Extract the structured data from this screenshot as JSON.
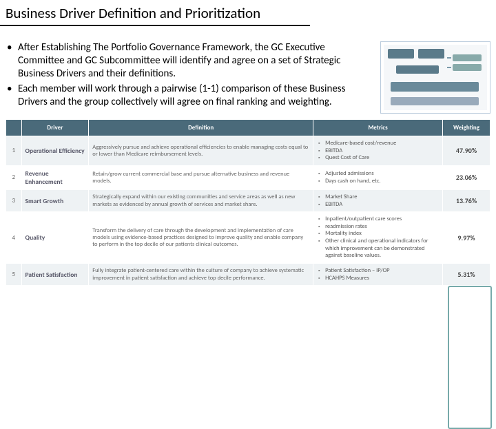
{
  "title": "Business Driver Definition and Prioritization",
  "bullets": [
    "After Establishing  The Portfolio Governance Framework, the GC Executive Committee and GC Subcommittee will identify and agree on a set of Strategic Business Drivers and their definitions.",
    "Each member will work through a pairwise (1-1) comparison of these Business Drivers and the group collectively will agree on final ranking and weighting."
  ],
  "table": {
    "headers": [
      "",
      "Driver",
      "Definition",
      "Metrics",
      "Weighting"
    ],
    "rows": [
      {
        "n": "1",
        "driver": "Operational Efficiency",
        "def": "Aggressively pursue and achieve operational efficiencies to enable managing costs equal to or lower than Medicare reimbursement levels.",
        "metrics": [
          "Medicare-based cost/revenue",
          "EBITDA",
          "Quest Cost of Care"
        ],
        "weight": "47.90%"
      },
      {
        "n": "2",
        "driver": "Revenue Enhancement",
        "def": "Retain/grow current commercial base and pursue alternative business and revenue models.",
        "metrics": [
          "Adjusted admissions",
          "Days cash on hand, etc."
        ],
        "weight": "23.06%"
      },
      {
        "n": "3",
        "driver": "Smart Growth",
        "def": "Strategically expand within our existing communities and service areas as well as new markets as evidenced by annual growth of services and market share.",
        "metrics": [
          "Market Share",
          "EBITDA"
        ],
        "weight": "13.76%"
      },
      {
        "n": "4",
        "driver": "Quality",
        "def": "Transform the delivery of care through the development and implementation of care models using evidence-based practices designed to improve quality and enable company to perform in the top decile of our patients clinical outcomes.",
        "metrics": [
          "Inpatient/outpatient care scores",
          "readmission rates",
          "Mortality index",
          "Other clinical and operational indicators for which improvement can be demonstrated against baseline values."
        ],
        "weight": "9.97%"
      },
      {
        "n": "5",
        "driver": "Patient Satisfaction",
        "def": "Fully integrate patient-centered care within the culture of company to achieve systematic improvement in patient satisfaction and achieve top decile performance.",
        "metrics": [
          "Patient Satisfaction – IP/OP",
          "HCAHPS Measures"
        ],
        "weight": "5.31%"
      }
    ]
  },
  "colors": {
    "header_bg": "#4a6a7a",
    "row_alt": "#eef2f4",
    "highlight_border": "#7aa"
  }
}
